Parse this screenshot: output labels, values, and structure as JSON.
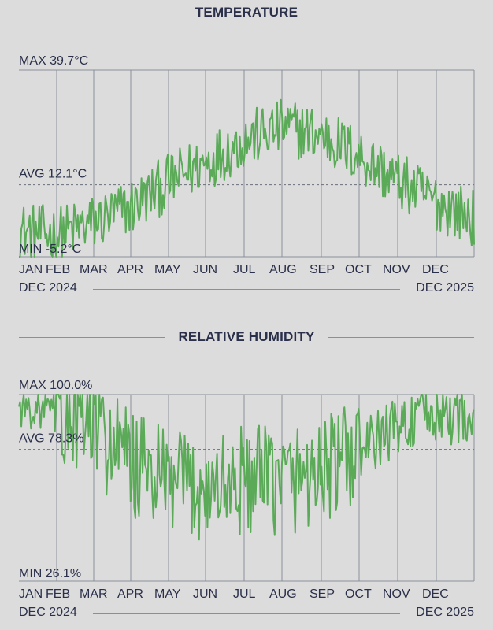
{
  "temperature": {
    "title": "TEMPERATURE",
    "max_label": "MAX 39.7°C",
    "avg_label": "AVG 12.1°C",
    "min_label": "MIN -5.2°C",
    "range_start": "DEC 2024",
    "range_end": "DEC 2025"
  },
  "humidity": {
    "title": "RELATIVE HUMIDITY",
    "max_label": "MAX 100.0%",
    "avg_label": "AVG 78.3%",
    "min_label": "MIN 26.1%",
    "range_start": "DEC 2024",
    "range_end": "DEC 2025"
  },
  "months": [
    "JAN",
    "FEB",
    "MAR",
    "APR",
    "MAY",
    "JUN",
    "JUL",
    "AUG",
    "SEP",
    "OCT",
    "NOV",
    "DEC"
  ],
  "colors": {
    "line": "#5aaa58",
    "text": "#2a2f4a",
    "grid": "#8a8f9a",
    "background": "#dcdcdc"
  },
  "chart_data": [
    {
      "type": "line",
      "title": "TEMPERATURE",
      "unit": "°C",
      "x_range": [
        "DEC 2024",
        "DEC 2025"
      ],
      "ylim": [
        -5.2,
        39.7
      ],
      "max": 39.7,
      "avg": 12.1,
      "min": -5.2,
      "series": [
        {
          "x": [
            "Dec",
            "Jan",
            "Feb",
            "Mar",
            "Apr",
            "May",
            "Jun",
            "Jul",
            "Aug",
            "Sep",
            "Oct",
            "Nov",
            "Dec"
          ],
          "values": [
            1,
            0,
            3,
            7,
            13,
            18,
            23,
            26,
            24,
            19,
            13,
            8,
            4
          ]
        }
      ]
    },
    {
      "type": "line",
      "title": "RELATIVE HUMIDITY",
      "unit": "%",
      "x_range": [
        "DEC 2024",
        "DEC 2025"
      ],
      "ylim": [
        26.1,
        100.0
      ],
      "max": 100.0,
      "avg": 78.3,
      "min": 26.1,
      "series": [
        {
          "x": [
            "Dec",
            "Jan",
            "Feb",
            "Mar",
            "Apr",
            "May",
            "Jun",
            "Jul",
            "Aug",
            "Sep",
            "Oct",
            "Nov",
            "Dec"
          ],
          "values": [
            95,
            93,
            86,
            72,
            64,
            63,
            66,
            66,
            70,
            77,
            88,
            92,
            92
          ]
        }
      ]
    }
  ]
}
